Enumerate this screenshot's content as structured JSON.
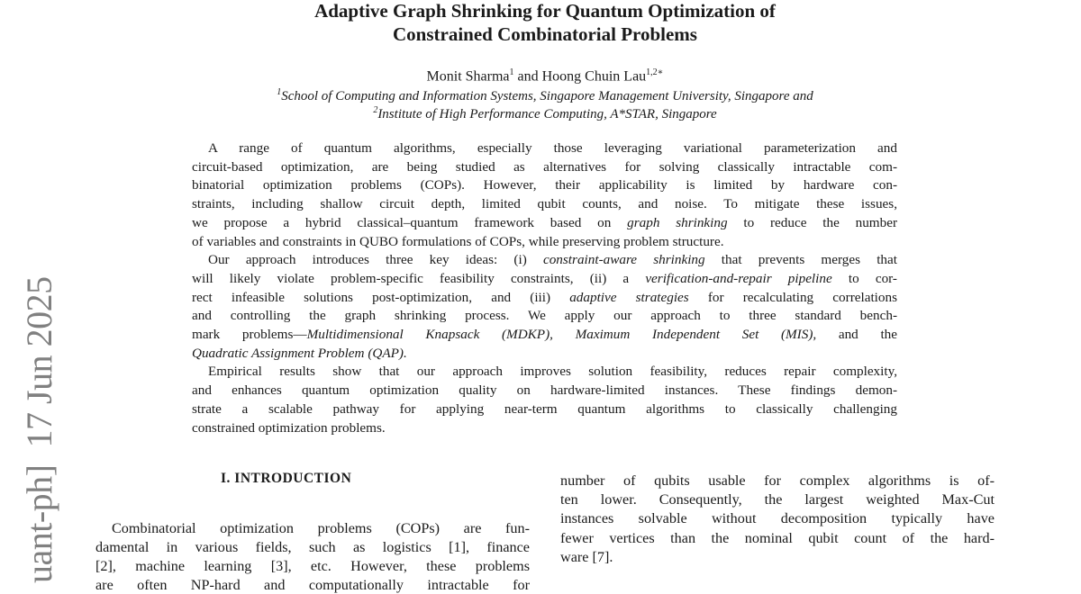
{
  "paper": {
    "title_lines": [
      "Adaptive Graph Shrinking for Quantum Optimization of",
      "Constrained Combinatorial Problems"
    ],
    "authors": {
      "a1": "Monit Sharma",
      "a1_sup": "1",
      "and": " and ",
      "a2": "Hoong Chuin Lau",
      "a2_sup": "1,2∗"
    },
    "affiliations": [
      {
        "sup": "1",
        "text": "School of Computing and Information Systems, Singapore Management University, Singapore and"
      },
      {
        "sup": "2",
        "text": "Institute of High Performance Computing, A*STAR, Singapore"
      }
    ],
    "watermark": {
      "left": "uant-ph]",
      "date": "17 Jun 2025"
    },
    "abstract_lines": [
      {
        "indent": true,
        "seg": [
          {
            "t": "A range of quantum algorithms, especially those leveraging variational parameterization and"
          }
        ]
      },
      {
        "seg": [
          {
            "t": "circuit-based optimization, are being studied as alternatives for solving classically intractable com-"
          }
        ]
      },
      {
        "seg": [
          {
            "t": "binatorial optimization problems (COPs). However, their applicability is limited by hardware con-"
          }
        ]
      },
      {
        "seg": [
          {
            "t": "straints, including shallow circuit depth, limited qubit counts, and noise. To mitigate these issues,"
          }
        ]
      },
      {
        "seg": [
          {
            "t": "we propose a hybrid classical–quantum framework based on "
          },
          {
            "t": "graph shrinking",
            "i": true
          },
          {
            "t": " to reduce the number"
          }
        ]
      },
      {
        "last": true,
        "seg": [
          {
            "t": "of variables and constraints in QUBO formulations of COPs, while preserving problem structure."
          }
        ]
      },
      {
        "indent": true,
        "seg": [
          {
            "t": "Our approach introduces three key ideas: (i) "
          },
          {
            "t": "constraint-aware shrinking",
            "i": true
          },
          {
            "t": " that prevents merges that"
          }
        ]
      },
      {
        "seg": [
          {
            "t": "will likely violate problem-specific feasibility constraints, (ii) a "
          },
          {
            "t": "verification-and-repair pipeline",
            "i": true
          },
          {
            "t": " to cor-"
          }
        ]
      },
      {
        "seg": [
          {
            "t": "rect infeasible solutions post-optimization, and (iii) "
          },
          {
            "t": "adaptive strategies",
            "i": true
          },
          {
            "t": " for recalculating correlations"
          }
        ]
      },
      {
        "seg": [
          {
            "t": "and controlling the graph shrinking process. We apply our approach to three standard bench-"
          }
        ]
      },
      {
        "seg": [
          {
            "t": "mark problems—"
          },
          {
            "t": "Multidimensional Knapsack (MDKP), Maximum Independent Set (MIS),",
            "i": true
          },
          {
            "t": " and the"
          }
        ]
      },
      {
        "last": true,
        "seg": [
          {
            "t": "Quadratic Assignment Problem (QAP).",
            "i": true
          }
        ]
      },
      {
        "indent": true,
        "seg": [
          {
            "t": "Empirical results show that our approach improves solution feasibility, reduces repair complexity,"
          }
        ]
      },
      {
        "seg": [
          {
            "t": "and enhances quantum optimization quality on hardware-limited instances. These findings demon-"
          }
        ]
      },
      {
        "seg": [
          {
            "t": "strate a scalable pathway for applying near-term quantum algorithms to classically challenging"
          }
        ]
      },
      {
        "last": true,
        "seg": [
          {
            "t": "constrained optimization problems."
          }
        ]
      }
    ],
    "section_heading": "I.   INTRODUCTION",
    "left_col_lines": [
      {
        "indent": true,
        "seg": [
          {
            "t": "Combinatorial optimization problems (COPs) are fun-"
          }
        ]
      },
      {
        "seg": [
          {
            "t": "damental in various fields, such as logistics [1], finance"
          }
        ]
      },
      {
        "seg": [
          {
            "t": "[2], machine learning [3], etc. However, these problems"
          }
        ]
      },
      {
        "seg": [
          {
            "t": "are often NP-hard and computationally intractable for"
          }
        ]
      }
    ],
    "right_col_lines": [
      {
        "seg": [
          {
            "t": "number of qubits usable for complex algorithms is of-"
          }
        ]
      },
      {
        "seg": [
          {
            "t": "ten lower. Consequently, the largest weighted Max-Cut"
          }
        ]
      },
      {
        "seg": [
          {
            "t": "instances solvable without decomposition typically have"
          }
        ]
      },
      {
        "seg": [
          {
            "t": "fewer vertices than the nominal qubit count of the hard-"
          }
        ]
      },
      {
        "last": true,
        "seg": [
          {
            "t": "ware [7]."
          }
        ]
      }
    ]
  }
}
